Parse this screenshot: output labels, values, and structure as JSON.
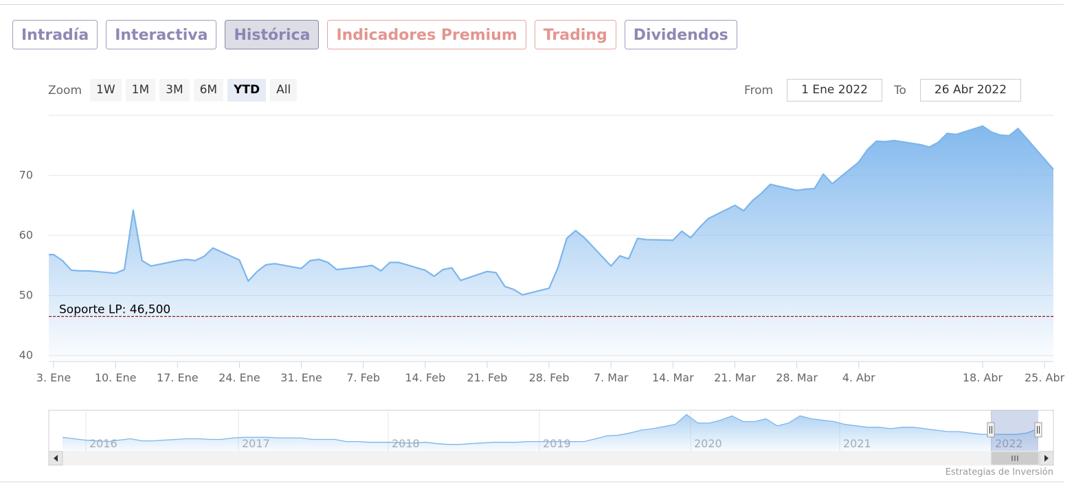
{
  "tabs": [
    {
      "label": "Intradía",
      "style": "purple"
    },
    {
      "label": "Interactiva",
      "style": "purple"
    },
    {
      "label": "Histórica",
      "style": "active"
    },
    {
      "label": "Indicadores Premium",
      "style": "salmon"
    },
    {
      "label": "Trading",
      "style": "salmon"
    },
    {
      "label": "Dividendos",
      "style": "purple"
    }
  ],
  "zoom": {
    "label": "Zoom",
    "buttons": [
      "1W",
      "1M",
      "3M",
      "6M",
      "YTD",
      "All"
    ],
    "selected": "YTD"
  },
  "range": {
    "from_label": "From",
    "from_value": "1 Ene 2022",
    "to_label": "To",
    "to_value": "26 Abr 2022"
  },
  "credit": "Estrategias de Inversión",
  "colors": {
    "line": "#7cb5ec",
    "support": "#8b0000",
    "grid": "#e6e6e6"
  },
  "chart_data": {
    "type": "area",
    "x_ticks": [
      "3. Ene",
      "10. Ene",
      "17. Ene",
      "24. Ene",
      "31. Ene",
      "7. Feb",
      "14. Feb",
      "21. Feb",
      "28. Feb",
      "7. Mar",
      "14. Mar",
      "21. Mar",
      "28. Mar",
      "4. Abr",
      "18. Abr",
      "25. Abr"
    ],
    "y_ticks": [
      40,
      50,
      60,
      70
    ],
    "ylim": [
      39,
      80
    ],
    "xlim": [
      "2022-01-03",
      "2022-04-26"
    ],
    "grid": true,
    "series": [
      {
        "values": [
          [
            "2022-01-03",
            56.8
          ],
          [
            "2022-01-04",
            55.8
          ],
          [
            "2022-01-05",
            54.2
          ],
          [
            "2022-01-06",
            54.1
          ],
          [
            "2022-01-07",
            54.1
          ],
          [
            "2022-01-10",
            53.7
          ],
          [
            "2022-01-11",
            54.3
          ],
          [
            "2022-01-12",
            64.2
          ],
          [
            "2022-01-13",
            55.8
          ],
          [
            "2022-01-14",
            54.9
          ],
          [
            "2022-01-17",
            55.8
          ],
          [
            "2022-01-18",
            56.0
          ],
          [
            "2022-01-19",
            55.8
          ],
          [
            "2022-01-20",
            56.5
          ],
          [
            "2022-01-21",
            57.9
          ],
          [
            "2022-01-24",
            55.9
          ],
          [
            "2022-01-25",
            52.4
          ],
          [
            "2022-01-26",
            54.0
          ],
          [
            "2022-01-27",
            55.1
          ],
          [
            "2022-01-28",
            55.3
          ],
          [
            "2022-01-31",
            54.5
          ],
          [
            "2022-02-01",
            55.8
          ],
          [
            "2022-02-02",
            56.0
          ],
          [
            "2022-02-03",
            55.5
          ],
          [
            "2022-02-04",
            54.3
          ],
          [
            "2022-02-07",
            54.8
          ],
          [
            "2022-02-08",
            55.0
          ],
          [
            "2022-02-09",
            54.1
          ],
          [
            "2022-02-10",
            55.5
          ],
          [
            "2022-02-11",
            55.5
          ],
          [
            "2022-02-14",
            54.2
          ],
          [
            "2022-02-15",
            53.2
          ],
          [
            "2022-02-16",
            54.3
          ],
          [
            "2022-02-17",
            54.6
          ],
          [
            "2022-02-18",
            52.5
          ],
          [
            "2022-02-21",
            54.0
          ],
          [
            "2022-02-22",
            53.8
          ],
          [
            "2022-02-23",
            51.5
          ],
          [
            "2022-02-24",
            51.0
          ],
          [
            "2022-02-25",
            50.1
          ],
          [
            "2022-02-28",
            51.2
          ],
          [
            "2022-03-01",
            54.6
          ],
          [
            "2022-03-02",
            59.5
          ],
          [
            "2022-03-03",
            60.8
          ],
          [
            "2022-03-04",
            59.6
          ],
          [
            "2022-03-07",
            54.9
          ],
          [
            "2022-03-08",
            56.6
          ],
          [
            "2022-03-09",
            56.1
          ],
          [
            "2022-03-10",
            59.5
          ],
          [
            "2022-03-11",
            59.3
          ],
          [
            "2022-03-14",
            59.2
          ],
          [
            "2022-03-15",
            60.7
          ],
          [
            "2022-03-16",
            59.6
          ],
          [
            "2022-03-17",
            61.3
          ],
          [
            "2022-03-18",
            62.8
          ],
          [
            "2022-03-21",
            65.0
          ],
          [
            "2022-03-22",
            64.1
          ],
          [
            "2022-03-23",
            65.8
          ],
          [
            "2022-03-24",
            67.0
          ],
          [
            "2022-03-25",
            68.5
          ],
          [
            "2022-03-28",
            67.5
          ],
          [
            "2022-03-29",
            67.7
          ],
          [
            "2022-03-30",
            67.8
          ],
          [
            "2022-03-31",
            70.2
          ],
          [
            "2022-04-01",
            68.6
          ],
          [
            "2022-04-04",
            72.2
          ],
          [
            "2022-04-05",
            74.3
          ],
          [
            "2022-04-06",
            75.7
          ],
          [
            "2022-04-07",
            75.6
          ],
          [
            "2022-04-08",
            75.8
          ],
          [
            "2022-04-11",
            75.1
          ],
          [
            "2022-04-12",
            74.7
          ],
          [
            "2022-04-13",
            75.5
          ],
          [
            "2022-04-14",
            77.0
          ],
          [
            "2022-04-15",
            76.8
          ],
          [
            "2022-04-18",
            78.2
          ],
          [
            "2022-04-19",
            77.2
          ],
          [
            "2022-04-20",
            76.7
          ],
          [
            "2022-04-21",
            76.6
          ],
          [
            "2022-04-22",
            77.8
          ],
          [
            "2022-04-26",
            71.0
          ]
        ]
      }
    ],
    "annotations": [
      {
        "text": "Soporte LP: 46,500",
        "y": 46.5
      }
    ],
    "navigator": {
      "years": [
        "2016",
        "2017",
        "2018",
        "2019",
        "2020",
        "2021",
        "2022"
      ],
      "values": [
        34,
        33,
        32,
        31.5,
        31,
        32,
        33,
        31.5,
        31.5,
        32,
        32.5,
        33,
        33,
        32.5,
        32.5,
        33.5,
        34,
        34,
        34,
        33.5,
        33.5,
        33.5,
        32.5,
        32.5,
        32.5,
        31,
        31,
        30.5,
        30.5,
        30.5,
        30,
        30,
        30.5,
        29.5,
        29,
        29,
        29.5,
        30,
        30.5,
        30.5,
        30.5,
        31,
        31,
        31,
        31,
        31,
        31,
        33,
        35,
        35.5,
        37,
        39,
        40,
        41.5,
        43,
        50,
        44,
        44,
        46,
        49,
        45,
        45,
        47,
        42,
        44,
        49,
        47,
        46,
        45,
        43,
        42,
        41,
        41,
        40,
        41,
        41,
        40,
        39,
        38,
        38,
        37,
        36,
        36,
        36,
        36,
        37,
        40
      ]
    }
  }
}
